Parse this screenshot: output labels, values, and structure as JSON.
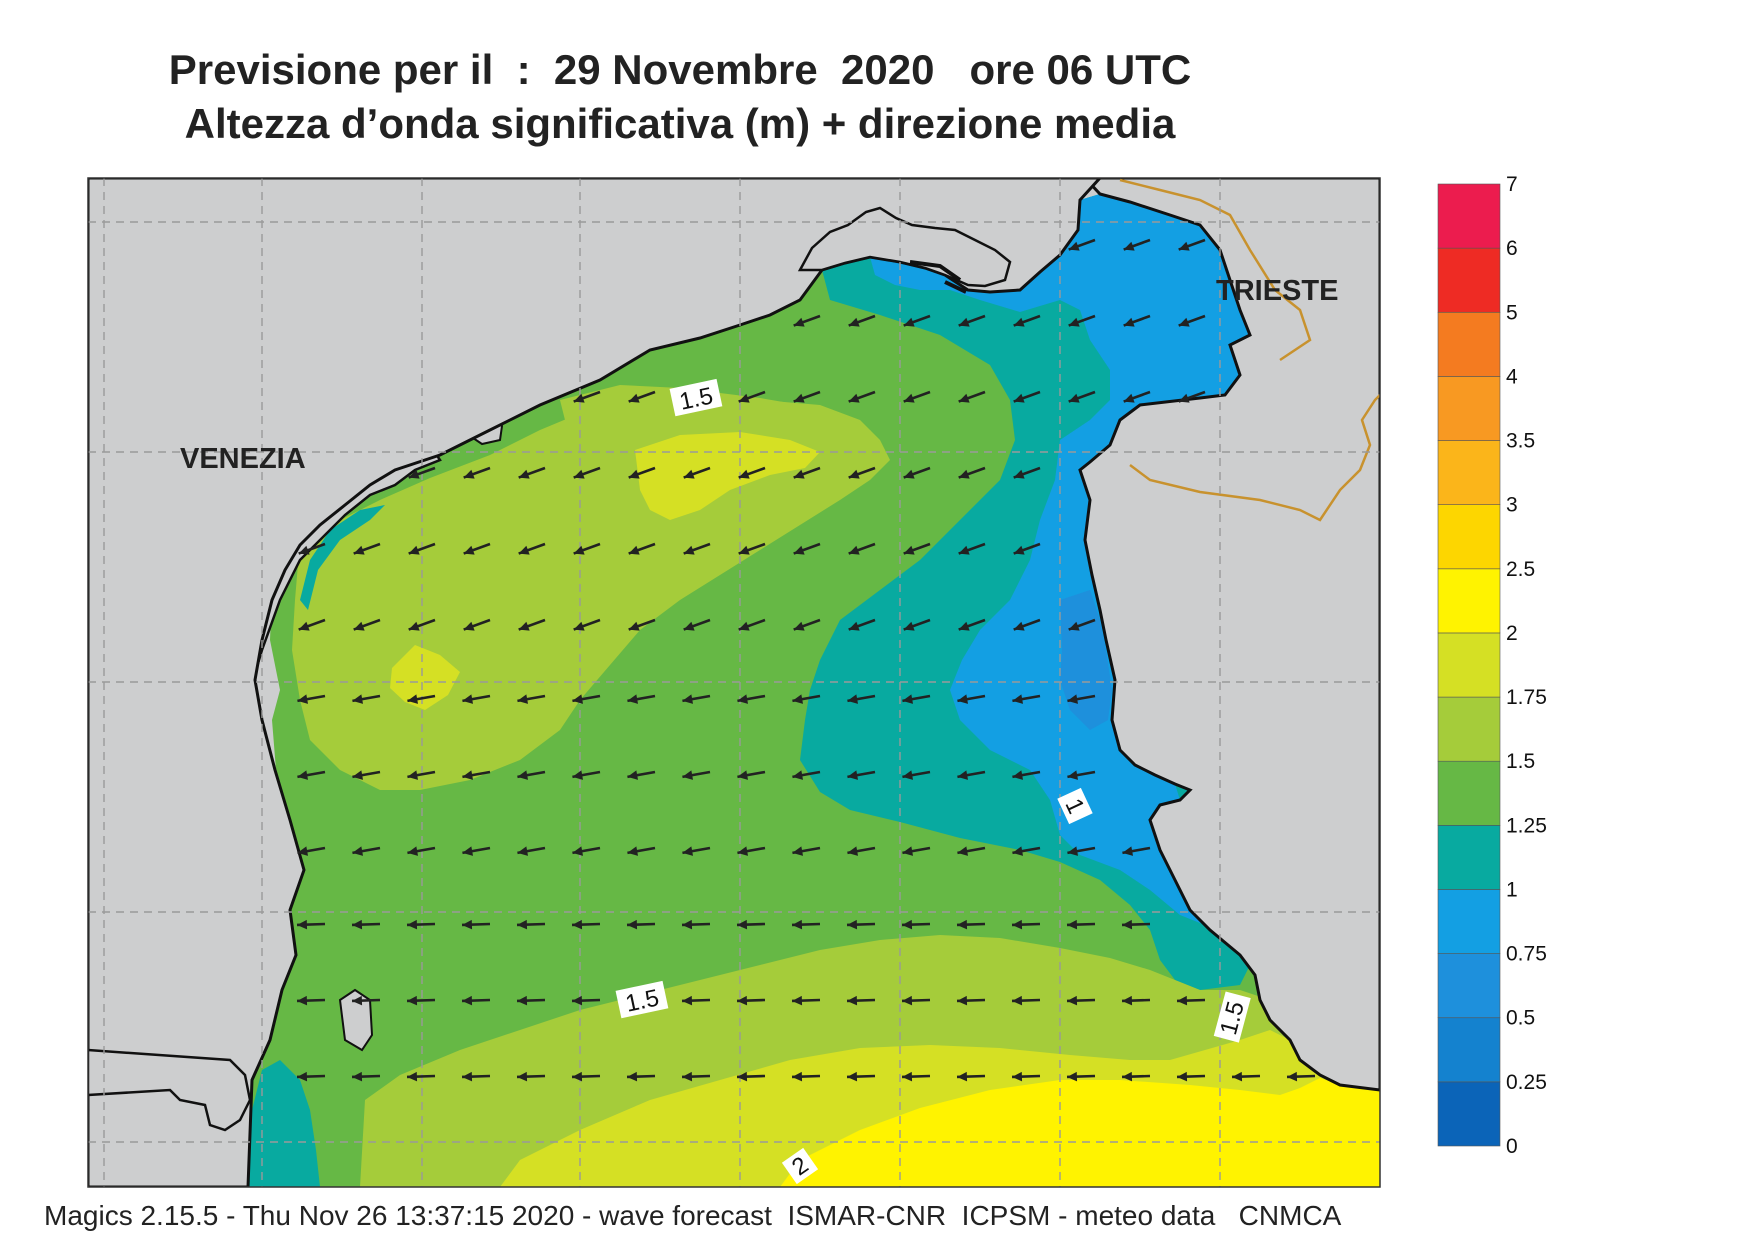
{
  "header": {
    "title_line1": "Previsione per il  :  29 Novembre  2020   ore 06 UTC",
    "title_line2": "Altezza d’onda significativa (m) + direzione media"
  },
  "footer": {
    "credits": "Magics 2.15.5 - Thu Nov 26 13:37:15 2020 - wave forecast  ISMAR-CNR  ICPSM - meteo data   CNMCA"
  },
  "map": {
    "cities": [
      {
        "id": "venezia",
        "label": "VENEZIA"
      },
      {
        "id": "trieste",
        "label": "TRIESTE"
      }
    ],
    "contour_labels": [
      "1.5",
      "1",
      "1.5",
      "1.5",
      "2"
    ],
    "colors": {
      "land": "#cdcecf",
      "grid": "#9a9a9a",
      "border": "#c8922e",
      "coast": "#111111",
      "arrow": "#222222"
    }
  },
  "legend": {
    "bins": [
      {
        "label": "0",
        "color": "#0b64b8"
      },
      {
        "label": "0.25",
        "color": "#1482cf"
      },
      {
        "label": "0.5",
        "color": "#1e90dc"
      },
      {
        "label": "0.75",
        "color": "#139fe3"
      },
      {
        "label": "1",
        "color": "#08aaa0"
      },
      {
        "label": "1.25",
        "color": "#66b845"
      },
      {
        "label": "1.5",
        "color": "#a5cc3a"
      },
      {
        "label": "1.75",
        "color": "#d5e024"
      },
      {
        "label": "2",
        "color": "#fff300"
      },
      {
        "label": "2.5",
        "color": "#fdd600"
      },
      {
        "label": "3",
        "color": "#fbb51a"
      },
      {
        "label": "3.5",
        "color": "#f89922"
      },
      {
        "label": "4",
        "color": "#f47b20"
      },
      {
        "label": "5",
        "color": "#ee2b24"
      },
      {
        "label": "6",
        "color": "#ec1c4e"
      },
      {
        "label": "7",
        "color": ""
      }
    ]
  }
}
